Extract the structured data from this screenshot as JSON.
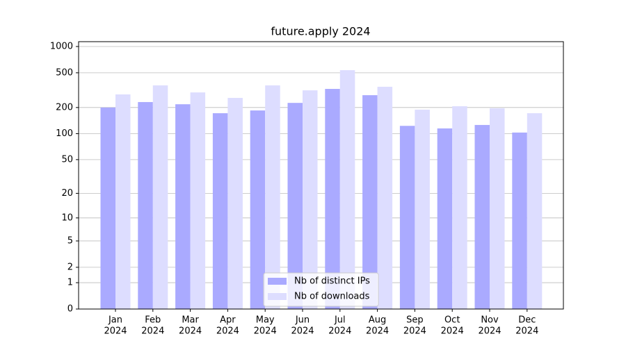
{
  "chart_data": {
    "type": "bar",
    "title": "future.apply 2024",
    "categories": [
      [
        "Jan",
        "2024"
      ],
      [
        "Feb",
        "2024"
      ],
      [
        "Mar",
        "2024"
      ],
      [
        "Apr",
        "2024"
      ],
      [
        "May",
        "2024"
      ],
      [
        "Jun",
        "2024"
      ],
      [
        "Jul",
        "2024"
      ],
      [
        "Aug",
        "2024"
      ],
      [
        "Sep",
        "2024"
      ],
      [
        "Oct",
        "2024"
      ],
      [
        "Nov",
        "2024"
      ],
      [
        "Dec",
        "2024"
      ]
    ],
    "series": [
      {
        "name": "Nb of distinct IPs",
        "color": "#aaaaff",
        "values": [
          200,
          231,
          218,
          172,
          185,
          226,
          327,
          277,
          123,
          115,
          126,
          103
        ]
      },
      {
        "name": "Nb of downloads",
        "color": "#ddddff",
        "values": [
          283,
          359,
          298,
          258,
          359,
          315,
          536,
          346,
          189,
          207,
          196,
          172
        ]
      }
    ],
    "yscale": "log1p",
    "ylim": [
      0,
      1136
    ],
    "yticks": [
      0,
      1,
      2,
      5,
      10,
      20,
      50,
      100,
      200,
      500,
      1000
    ],
    "grid": true,
    "legend": "lower center"
  }
}
